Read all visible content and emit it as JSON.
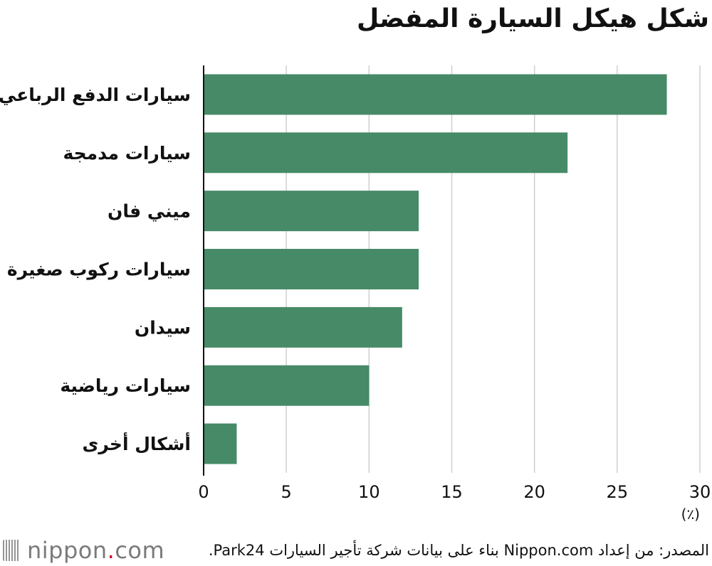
{
  "chart_data": {
    "type": "bar",
    "orientation": "horizontal",
    "title": "شكل هيكل السيارة المفضل",
    "categories": [
      "سيارات الدفع الرباعي",
      "سيارات مدمجة",
      "ميني فان",
      "سيارات ركوب صغيرة",
      "سيدان",
      "سيارات رياضية",
      "أشكال أخرى"
    ],
    "values": [
      28,
      22,
      13,
      13,
      12,
      10,
      2
    ],
    "xlim": [
      0,
      30
    ],
    "xticks": [
      0,
      5,
      10,
      15,
      20,
      25,
      30
    ],
    "unit_label": "(٪)",
    "grid": true,
    "bar_color": "#468a67"
  },
  "footer": {
    "source": "المصدر: من إعداد Nippon.com بناء على بيانات شركة تأجير السيارات Park24.",
    "logo_text": "nippon.com",
    "logo_dot_color": "#c8102e"
  }
}
